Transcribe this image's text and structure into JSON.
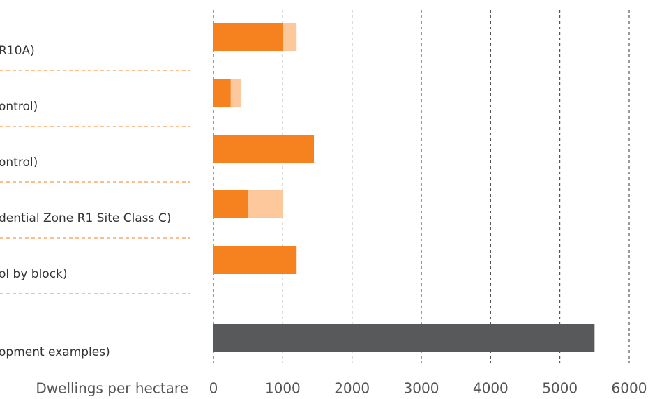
{
  "chart_data": {
    "type": "stacked-barh",
    "categories": [
      "R10A)",
      "ontrol)",
      "ontrol)",
      "dential Zone R1 Site Class C)",
      "ol by block)",
      "opment examples)"
    ],
    "series": [
      {
        "color": "#f5821f",
        "colors": [
          "#f5821f",
          "#f5821f",
          "#f5821f",
          "#f5821f",
          "#f5821f",
          "#58595b"
        ],
        "values": [
          1000,
          250,
          1450,
          500,
          1200,
          5500
        ]
      },
      {
        "color": "#fdc89b",
        "values": [
          200,
          150,
          null,
          500,
          null,
          null
        ]
      }
    ],
    "xlabel": "Dwellings per hectare",
    "xlim": [
      0,
      6000
    ],
    "xticks": [
      0,
      1000,
      2000,
      3000,
      4000,
      5000,
      6000
    ],
    "grid": true
  }
}
